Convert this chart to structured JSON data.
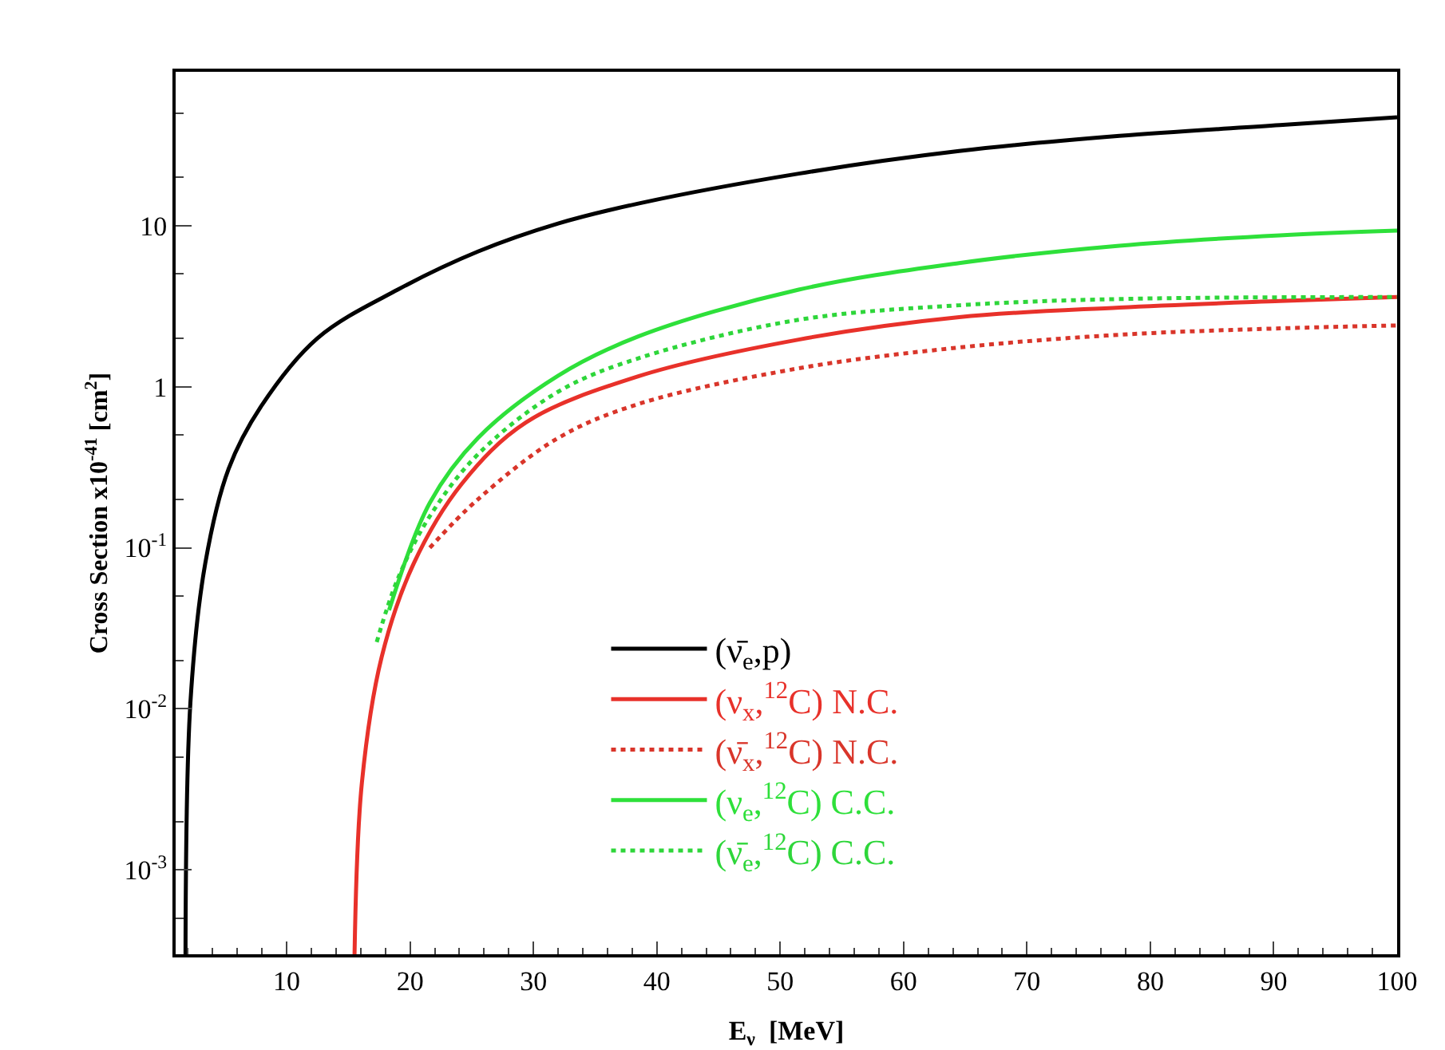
{
  "chart_data": {
    "type": "line",
    "xlabel": "E$_{ν}$  [MeV]",
    "ylabel": "Cross Section x10$^{-41}$ [cm$^{2}$]",
    "log": "y",
    "grid": false,
    "legend": "bottom",
    "marker": "none",
    "xlim": [
      1,
      100
    ],
    "xticks": [
      10,
      20,
      30,
      40,
      50,
      60,
      70,
      80,
      90,
      100
    ],
    "ylim": [
      0.0003,
      90
    ],
    "yticks": [
      {
        "value": 0.001,
        "label": "10$^{-3}$"
      },
      {
        "value": 0.01,
        "label": "10$^{-2}$"
      },
      {
        "value": 0.1,
        "label": "10$^{-1}$"
      },
      1,
      10
    ],
    "series": [
      {
        "name": "(ν̄$_{e}$,p)",
        "color": "#000000",
        "line_style": "solid",
        "x": [
          1.8,
          2.2,
          3.4,
          5.3,
          7.9,
          12.5,
          19,
          25.5,
          32,
          38.5,
          51.5,
          64.5,
          77.5,
          90.5,
          100
        ],
        "values": [
          0.0003,
          0.011,
          0.08,
          0.31,
          0.75,
          2.0,
          4.0,
          6.9,
          10.3,
          13.7,
          21,
          29,
          36,
          42,
          47
        ]
      },
      {
        "name": "(ν$_{x}$,$^{12}$C) N.C.",
        "color": "#e8312a",
        "line_style": "solid",
        "x": [
          15.5,
          16.1,
          17.7,
          20.3,
          24.2,
          29.4,
          38.5,
          51.5,
          64.5,
          77.5,
          90.5,
          100
        ],
        "values": [
          0.0003,
          0.0035,
          0.021,
          0.08,
          0.25,
          0.6,
          1.16,
          1.96,
          2.7,
          3.1,
          3.4,
          3.6
        ]
      },
      {
        "name": "(ν̄$_{x}$,$^{12}$C) N.C.",
        "color": "#d9352a",
        "line_style": "dotted",
        "x": [
          21.6,
          25.5,
          32,
          38.5,
          51.5,
          64.5,
          77.5,
          90.5,
          100
        ],
        "values": [
          0.1,
          0.2,
          0.48,
          0.78,
          1.3,
          1.75,
          2.1,
          2.3,
          2.4
        ]
      },
      {
        "name": "(ν$_{e}$,$^{12}$C) C.C.",
        "color": "#2ee03a",
        "line_style": "solid",
        "x": [
          18.3,
          21.6,
          25.5,
          32,
          38.5,
          51.5,
          64.5,
          77.5,
          90.5,
          100
        ],
        "values": [
          0.041,
          0.19,
          0.48,
          1.17,
          2.05,
          4.0,
          5.85,
          7.5,
          8.7,
          9.3
        ]
      },
      {
        "name": "(ν̄$_{e}$,$^{12}$C) C.C.",
        "color": "#2ed63a",
        "line_style": "dotted",
        "x": [
          17.3,
          19,
          21.6,
          25.5,
          32,
          38.5,
          51.5,
          64.5,
          77.5,
          100
        ],
        "values": [
          0.026,
          0.064,
          0.157,
          0.38,
          0.93,
          1.5,
          2.6,
          3.2,
          3.5,
          3.6
        ]
      }
    ]
  }
}
